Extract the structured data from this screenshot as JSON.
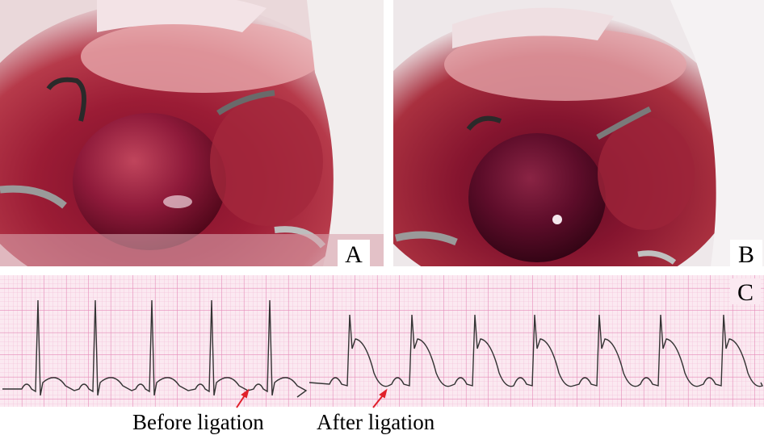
{
  "panels": [
    {
      "label": "A"
    },
    {
      "label": "B"
    },
    {
      "label": "C"
    }
  ],
  "annotations": {
    "before": "Before ligation",
    "after": "After ligation"
  }
}
